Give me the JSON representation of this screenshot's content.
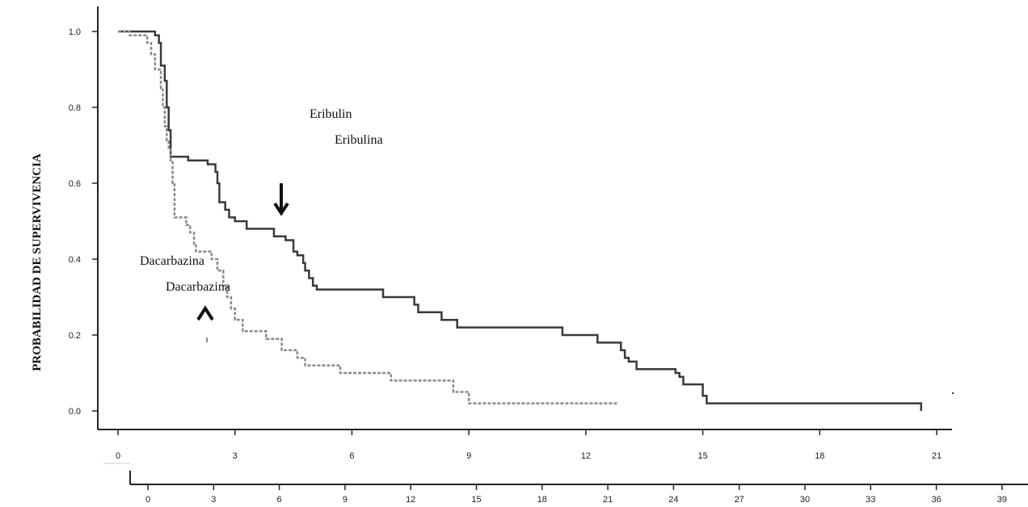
{
  "chart_data": {
    "type": "line",
    "ylabel": "PROBABILIDAD DE SUPERVIVENCIA",
    "xlabel": "",
    "xlim": [
      0,
      21
    ],
    "ylim": [
      0,
      1
    ],
    "y_ticks": [
      0.0,
      0.2,
      0.4,
      0.6,
      0.8,
      1.0
    ],
    "y_tick_labels": [
      "0.0",
      "0.2",
      "0.4",
      "0.6",
      "0.8",
      "1.0"
    ],
    "x_ticks": [
      0,
      3,
      6,
      9,
      12,
      15,
      18,
      21
    ],
    "x_tick_labels": [
      "0",
      "3",
      "6",
      "9",
      "12",
      "15",
      "18",
      "21"
    ],
    "x2_ticks": [
      0,
      3,
      6,
      9,
      12,
      15,
      18,
      21,
      24,
      27,
      30,
      33,
      36,
      39
    ],
    "x2_tick_labels": [
      "0",
      "3",
      "6",
      "9",
      "12",
      "15",
      "18",
      "21",
      "24",
      "27",
      "30",
      "33",
      "36",
      "39"
    ],
    "grid": false,
    "annotations": [
      {
        "text": "Eribulin",
        "x": 5.0,
        "y": 0.78
      },
      {
        "text": "Eribulina",
        "x": 5.6,
        "y": 0.71
      },
      {
        "text": "Dacarbazina",
        "x": 0.9,
        "y": 0.39
      },
      {
        "text": "Dacarbazina",
        "x": 1.3,
        "y": 0.32
      }
    ],
    "series": [
      {
        "style": "solid",
        "color": "#3a3a3a",
        "steps": [
          [
            0,
            1.0
          ],
          [
            0.95,
            0.99
          ],
          [
            1.05,
            0.97
          ],
          [
            1.1,
            0.91
          ],
          [
            1.2,
            0.87
          ],
          [
            1.25,
            0.8
          ],
          [
            1.3,
            0.74
          ],
          [
            1.35,
            0.67
          ],
          [
            1.8,
            0.66
          ],
          [
            2.3,
            0.65
          ],
          [
            2.5,
            0.63
          ],
          [
            2.55,
            0.6
          ],
          [
            2.6,
            0.55
          ],
          [
            2.75,
            0.53
          ],
          [
            2.85,
            0.51
          ],
          [
            3.0,
            0.5
          ],
          [
            3.3,
            0.48
          ],
          [
            4.0,
            0.46
          ],
          [
            4.3,
            0.45
          ],
          [
            4.5,
            0.42
          ],
          [
            4.6,
            0.41
          ],
          [
            4.75,
            0.39
          ],
          [
            4.8,
            0.37
          ],
          [
            4.9,
            0.35
          ],
          [
            5.0,
            0.33
          ],
          [
            5.1,
            0.32
          ],
          [
            6.8,
            0.3
          ],
          [
            7.6,
            0.28
          ],
          [
            7.7,
            0.26
          ],
          [
            8.3,
            0.24
          ],
          [
            8.7,
            0.22
          ],
          [
            11.4,
            0.2
          ],
          [
            12.3,
            0.18
          ],
          [
            12.9,
            0.16
          ],
          [
            13.0,
            0.14
          ],
          [
            13.1,
            0.13
          ],
          [
            13.3,
            0.11
          ],
          [
            14.3,
            0.1
          ],
          [
            14.4,
            0.09
          ],
          [
            14.5,
            0.07
          ],
          [
            15.0,
            0.04
          ],
          [
            15.1,
            0.02
          ],
          [
            20.6,
            0.0
          ]
        ]
      },
      {
        "style": "dashed",
        "color": "#8a8a8a",
        "steps": [
          [
            0,
            1.0
          ],
          [
            0.3,
            0.99
          ],
          [
            0.75,
            0.97
          ],
          [
            0.85,
            0.94
          ],
          [
            0.95,
            0.9
          ],
          [
            1.1,
            0.85
          ],
          [
            1.15,
            0.8
          ],
          [
            1.2,
            0.75
          ],
          [
            1.25,
            0.71
          ],
          [
            1.3,
            0.69
          ],
          [
            1.35,
            0.66
          ],
          [
            1.4,
            0.6
          ],
          [
            1.45,
            0.51
          ],
          [
            1.75,
            0.49
          ],
          [
            1.85,
            0.47
          ],
          [
            1.95,
            0.44
          ],
          [
            2.0,
            0.42
          ],
          [
            2.4,
            0.4
          ],
          [
            2.55,
            0.37
          ],
          [
            2.7,
            0.33
          ],
          [
            2.8,
            0.3
          ],
          [
            2.9,
            0.27
          ],
          [
            3.0,
            0.24
          ],
          [
            3.2,
            0.21
          ],
          [
            3.8,
            0.19
          ],
          [
            4.2,
            0.16
          ],
          [
            4.6,
            0.14
          ],
          [
            4.8,
            0.12
          ],
          [
            5.7,
            0.1
          ],
          [
            7.0,
            0.08
          ],
          [
            8.6,
            0.05
          ],
          [
            9.0,
            0.02
          ],
          [
            12.8,
            0.02
          ]
        ]
      }
    ]
  }
}
